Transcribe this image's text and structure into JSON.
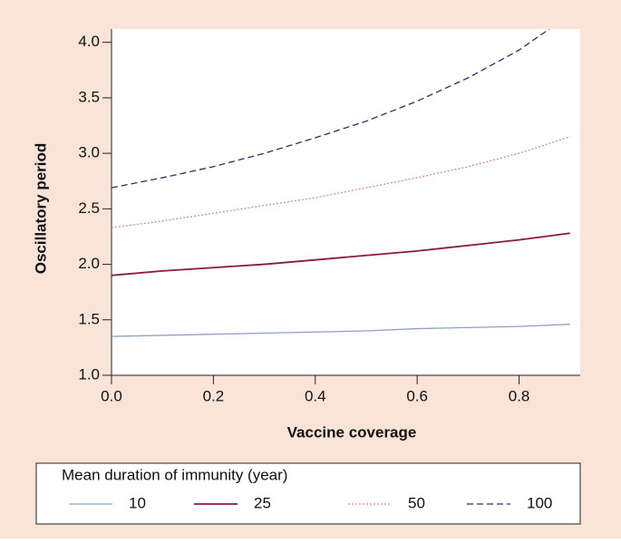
{
  "chart_data": {
    "type": "line",
    "xlabel": "Vaccine coverage",
    "ylabel": "Oscillatory period",
    "legend_title": "Mean duration of immunity (year)",
    "x": [
      0,
      0.1,
      0.2,
      0.3,
      0.4,
      0.5,
      0.6,
      0.7,
      0.8,
      0.9
    ],
    "series": [
      {
        "name": "10",
        "color": "#8fa2c2",
        "dash": "solid",
        "values": [
          1.35,
          1.36,
          1.37,
          1.38,
          1.39,
          1.4,
          1.42,
          1.43,
          1.44,
          1.46
        ]
      },
      {
        "name": "25",
        "color": "#8b1a3c",
        "dash": "solid",
        "values": [
          1.9,
          1.94,
          1.97,
          2.0,
          2.04,
          2.08,
          2.12,
          2.17,
          2.22,
          2.28
        ]
      },
      {
        "name": "50",
        "color": "#d08c9c",
        "dash": "dotted",
        "values": [
          2.33,
          2.39,
          2.46,
          2.53,
          2.6,
          2.69,
          2.78,
          2.88,
          3.0,
          3.15
        ]
      },
      {
        "name": "100",
        "color": "#2b306c",
        "dash": "dashed",
        "values": [
          2.69,
          2.78,
          2.88,
          3.0,
          3.14,
          3.29,
          3.47,
          3.68,
          3.93,
          4.25
        ]
      }
    ],
    "xlim": [
      0,
      0.92
    ],
    "ylim": [
      1.0,
      4.12
    ],
    "xticks": [
      {
        "value": 0,
        "label": "0.0"
      },
      0.2,
      0.4,
      0.6,
      0.8
    ],
    "yticks": [
      {
        "value": 1,
        "label": "1.0"
      },
      1.5,
      {
        "value": 2,
        "label": "2.0"
      },
      2.5,
      {
        "value": 3,
        "label": "3.0"
      },
      3.5,
      {
        "value": 4,
        "label": "4.0"
      }
    ]
  }
}
